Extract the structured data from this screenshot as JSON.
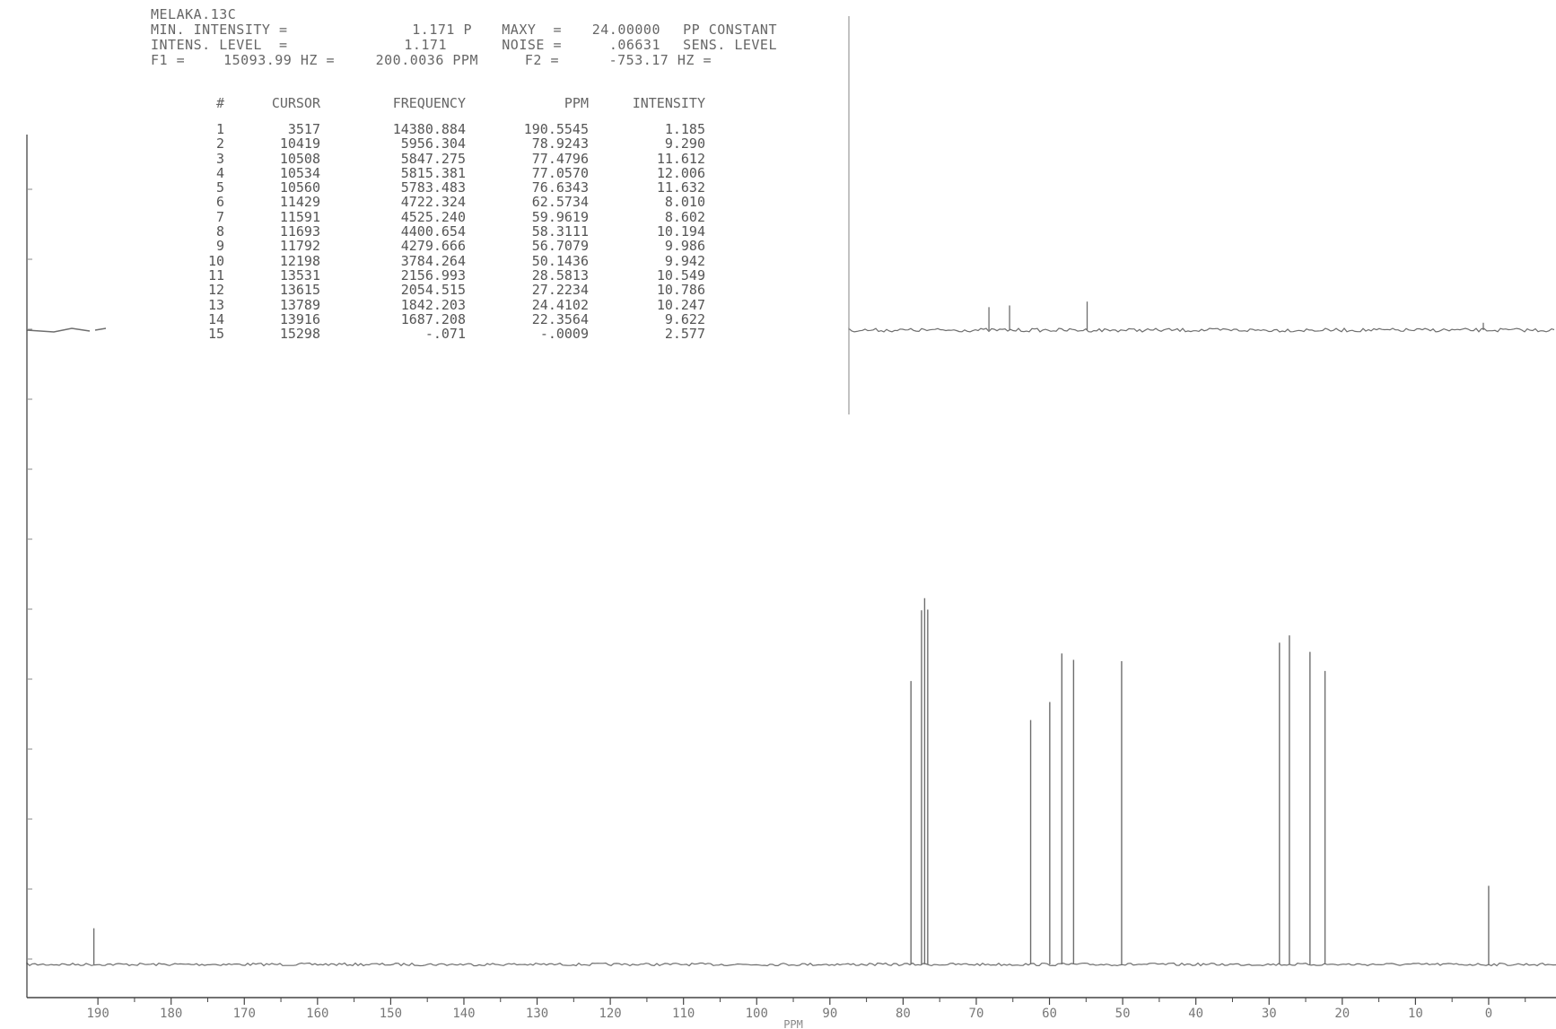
{
  "header": {
    "sample": "MELAKA.13C",
    "line1": {
      "min_intensity_label": "MIN. INTENSITY =",
      "min_intensity_value": "1.171 P",
      "maxy_label": "MAXY  =",
      "maxy_value": "24.00000",
      "pp_constant_label": "PP CONSTANT"
    },
    "line2": {
      "intens_level_label": "INTENS. LEVEL  =",
      "intens_level_value": "1.171",
      "noise_label": "NOISE =",
      "noise_value": ".06631",
      "sens_level_label": "SENS. LEVEL"
    },
    "line3": {
      "f1_label": "F1 =",
      "f1_hz": "15093.99 HZ =",
      "f1_ppm": "200.0036 PPM",
      "f2_label": "F2 =",
      "f2_hz": "-753.17 HZ ="
    }
  },
  "peak_table": {
    "headers": [
      "#",
      "CURSOR",
      "FREQUENCY",
      "PPM",
      "INTENSITY"
    ],
    "rows": [
      [
        "1",
        "3517",
        "14380.884",
        "190.5545",
        "1.185"
      ],
      [
        "2",
        "10419",
        "5956.304",
        "78.9243",
        "9.290"
      ],
      [
        "3",
        "10508",
        "5847.275",
        "77.4796",
        "11.612"
      ],
      [
        "4",
        "10534",
        "5815.381",
        "77.0570",
        "12.006"
      ],
      [
        "5",
        "10560",
        "5783.483",
        "76.6343",
        "11.632"
      ],
      [
        "6",
        "11429",
        "4722.324",
        "62.5734",
        "8.010"
      ],
      [
        "7",
        "11591",
        "4525.240",
        "59.9619",
        "8.602"
      ],
      [
        "8",
        "11693",
        "4400.654",
        "58.3111",
        "10.194"
      ],
      [
        "9",
        "11792",
        "4279.666",
        "56.7079",
        "9.986"
      ],
      [
        "10",
        "12198",
        "3784.264",
        "50.1436",
        "9.942"
      ],
      [
        "11",
        "13531",
        "2156.993",
        "28.5813",
        "10.549"
      ],
      [
        "12",
        "13615",
        "2054.515",
        "27.2234",
        "10.786"
      ],
      [
        "13",
        "13789",
        "1842.203",
        "24.4102",
        "10.247"
      ],
      [
        "14",
        "13916",
        "1687.208",
        "22.3564",
        "9.622"
      ],
      [
        "15",
        "15298",
        "-.071",
        "-.0009",
        "2.577"
      ]
    ]
  },
  "chart_data": {
    "type": "line",
    "title": "",
    "xlabel": "PPM",
    "ylabel": "",
    "x_reversed": true,
    "xlim": [
      199.7,
      -9.2
    ],
    "ylim": [
      0,
      24
    ],
    "x_ticks": [
      190,
      180,
      170,
      160,
      150,
      140,
      130,
      120,
      110,
      100,
      90,
      80,
      70,
      60,
      50,
      40,
      30,
      20,
      10,
      0
    ],
    "x_tick_labels": [
      "190",
      "180",
      "170",
      "160",
      "150",
      "140",
      "130",
      "120",
      "110",
      "100",
      "90",
      "80",
      "70",
      "60",
      "50",
      "40",
      "30",
      "20",
      "10",
      "0"
    ],
    "peaks": [
      {
        "ppm": 190.5545,
        "intensity": 1.185
      },
      {
        "ppm": 78.9243,
        "intensity": 9.29
      },
      {
        "ppm": 77.4796,
        "intensity": 11.612
      },
      {
        "ppm": 77.057,
        "intensity": 12.006
      },
      {
        "ppm": 76.6343,
        "intensity": 11.632
      },
      {
        "ppm": 62.5734,
        "intensity": 8.01
      },
      {
        "ppm": 59.9619,
        "intensity": 8.602
      },
      {
        "ppm": 58.3111,
        "intensity": 10.194
      },
      {
        "ppm": 56.7079,
        "intensity": 9.986
      },
      {
        "ppm": 50.1436,
        "intensity": 9.942
      },
      {
        "ppm": 28.5813,
        "intensity": 10.549
      },
      {
        "ppm": 27.2234,
        "intensity": 10.786
      },
      {
        "ppm": 24.4102,
        "intensity": 10.247
      },
      {
        "ppm": 22.3564,
        "intensity": 9.622
      },
      {
        "ppm": -0.0009,
        "intensity": 2.577
      }
    ],
    "inset": {
      "description": "vertically expanded upper trace (x 2.5)",
      "xlim": [
        80.3,
        -9.2
      ],
      "peaks": [
        {
          "ppm": 62.5734,
          "intensity": 8.01
        },
        {
          "ppm": 59.9619,
          "intensity": 8.602
        },
        {
          "ppm": 50.1436,
          "intensity": 9.942
        },
        {
          "ppm": -0.0009,
          "intensity": 2.577
        }
      ]
    },
    "grid": false,
    "colors": {
      "trace": "#6e6e6e",
      "axis": "#444444",
      "background": "#ffffff"
    }
  }
}
